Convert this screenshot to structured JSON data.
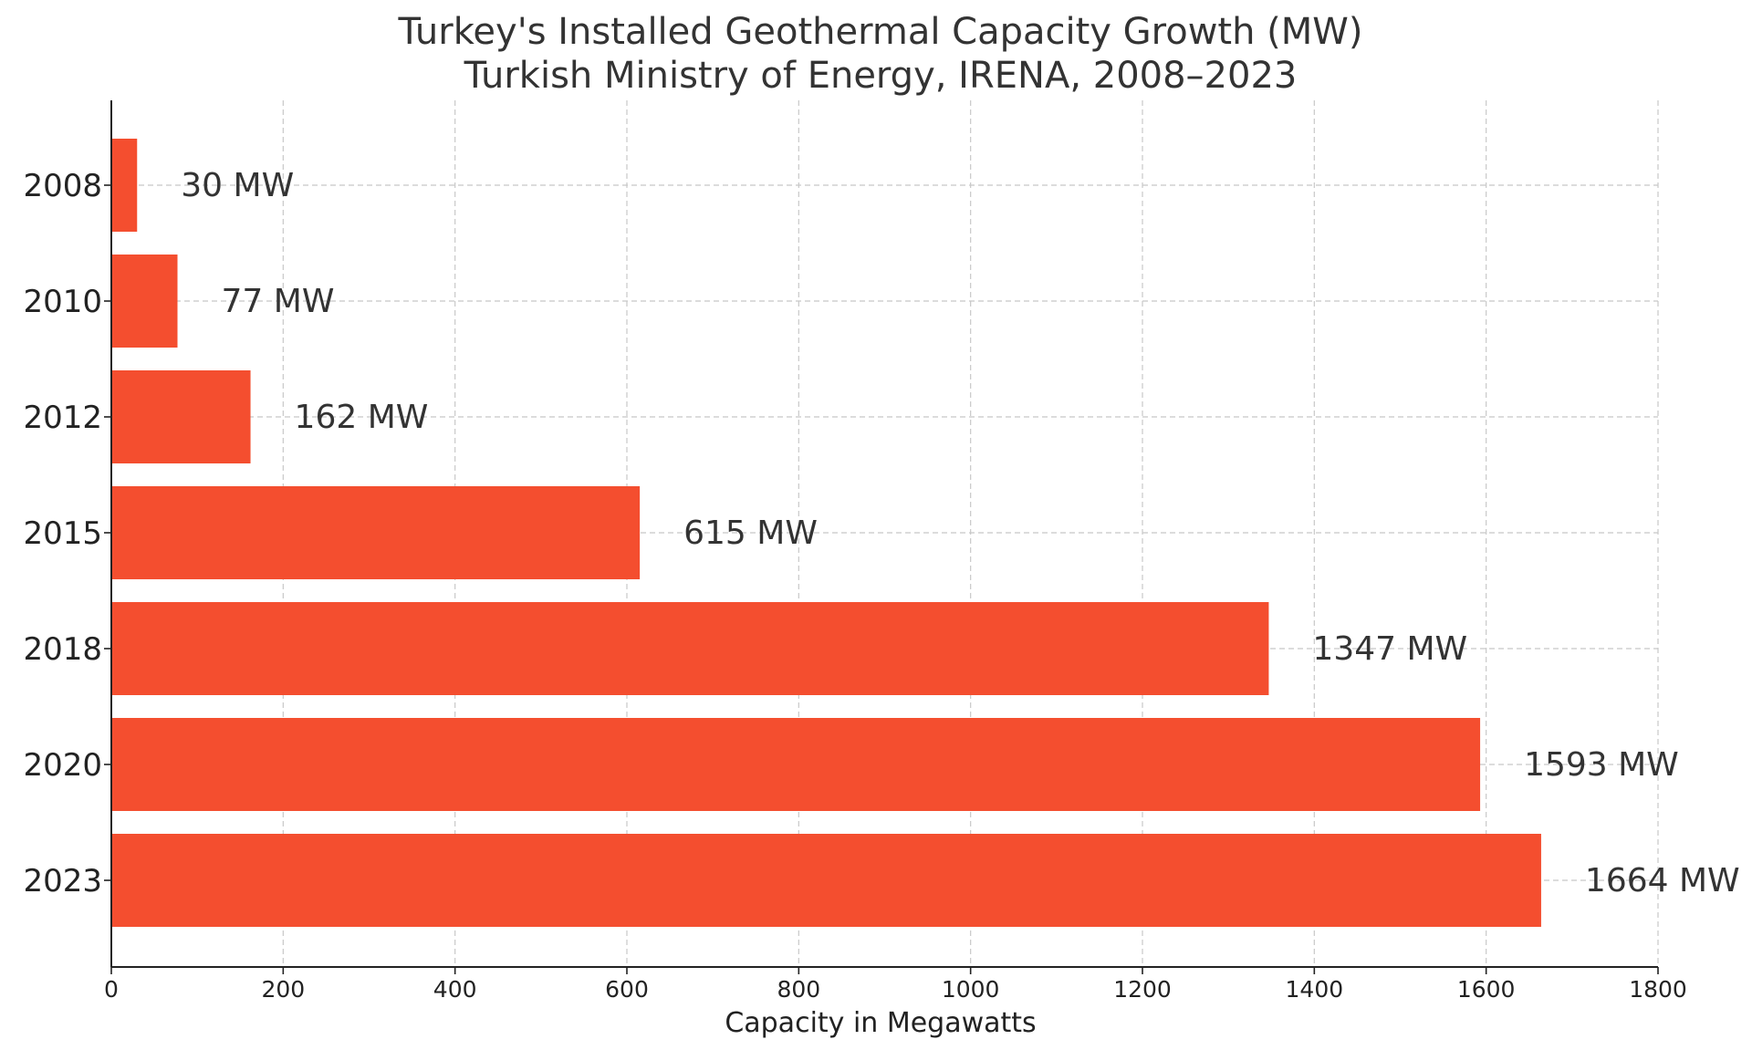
{
  "chart_data": {
    "type": "bar",
    "orientation": "horizontal",
    "title": "Turkey's Installed Geothermal Capacity Growth (MW)",
    "subtitle": "Turkish Ministry of Energy, IRENA, 2008–2023",
    "xlabel": "Capacity in Megawatts",
    "ylabel": "",
    "categories": [
      "2008",
      "2010",
      "2012",
      "2015",
      "2018",
      "2020",
      "2023"
    ],
    "values": [
      30,
      77,
      162,
      615,
      1347,
      1593,
      1664
    ],
    "data_labels": [
      "30 MW",
      "77 MW",
      "162 MW",
      "615 MW",
      "1347 MW",
      "1593 MW",
      "1664 MW"
    ],
    "xlim": [
      0,
      1800
    ],
    "xticks": [
      0,
      200,
      400,
      600,
      800,
      1000,
      1200,
      1400,
      1600,
      1800
    ],
    "grid": true,
    "bar_color": "#F44E2F",
    "text_color": "#333333"
  }
}
